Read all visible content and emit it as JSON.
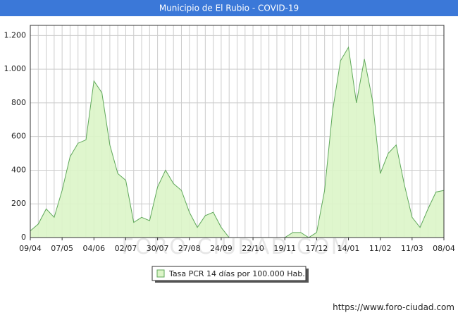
{
  "chart_data": {
    "type": "area",
    "title": "Municipio de El Rubio - COVID-19",
    "watermark": "FORO-CIUDAD.COM",
    "footer": "https://www.foro-ciudad.com",
    "categories": [
      "09/04",
      null,
      null,
      null,
      "07/05",
      null,
      null,
      null,
      "04/06",
      null,
      null,
      null,
      "02/07",
      null,
      null,
      null,
      "30/07",
      null,
      null,
      null,
      "27/08",
      null,
      null,
      null,
      "24/09",
      null,
      null,
      null,
      "22/10",
      null,
      null,
      null,
      "19/11",
      null,
      null,
      null,
      "17/12",
      null,
      null,
      null,
      "14/01",
      null,
      null,
      null,
      "11/02",
      null,
      null,
      null,
      "11/03",
      null,
      null,
      null,
      "08/04"
    ],
    "series": [
      {
        "name": "Tasa PCR 14 días por 100.000 Hab.",
        "color": "#5fa85a",
        "fill": "#dcf5c8",
        "values": [
          40,
          80,
          170,
          120,
          280,
          480,
          560,
          580,
          930,
          860,
          550,
          380,
          340,
          90,
          120,
          100,
          300,
          400,
          320,
          280,
          150,
          60,
          130,
          150,
          60,
          0,
          0,
          0,
          0,
          0,
          0,
          0,
          0,
          30,
          30,
          0,
          30,
          280,
          750,
          1050,
          1130,
          800,
          1060,
          820,
          380,
          500,
          550,
          320,
          120,
          60,
          170,
          270,
          280
        ]
      }
    ],
    "ylim": [
      0,
      1260
    ],
    "yticks": [
      0,
      200,
      400,
      600,
      800,
      {
        "value": 1000,
        "label": "1.000"
      },
      {
        "value": 1200,
        "label": "1.200"
      }
    ],
    "grid": true
  }
}
